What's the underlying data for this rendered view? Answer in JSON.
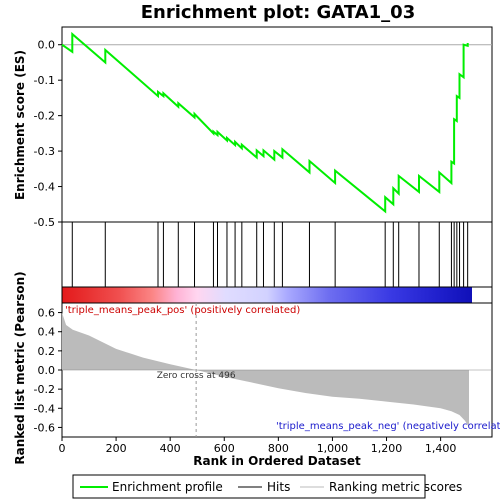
{
  "chart_data": {
    "type": "line",
    "title": "Enrichment plot: GATA1_03",
    "xlabel": "Rank in Ordered Dataset",
    "ylabel_top": "Enrichment score (ES)",
    "ylabel_bottom": "Ranked list metric (Pearson)",
    "x_range": [
      0,
      1590
    ],
    "es_ylim": [
      -0.5,
      0.05
    ],
    "metric_ylim": [
      -0.7,
      0.7
    ],
    "x_ticks": [
      0,
      200,
      400,
      600,
      800,
      1000,
      1200,
      1400
    ],
    "x_tick_labels": [
      "0",
      "200",
      "400",
      "600",
      "800",
      "1,000",
      "1,200",
      "1,400"
    ],
    "es_ticks": [
      0.0,
      -0.1,
      -0.2,
      -0.3,
      -0.4,
      -0.5
    ],
    "es_tick_labels": [
      "0.0",
      "-0.1",
      "-0.2",
      "-0.3",
      "-0.4",
      "-0.5"
    ],
    "metric_ticks": [
      0.6,
      0.4,
      0.2,
      0.0,
      -0.2,
      -0.4,
      -0.6
    ],
    "metric_tick_labels": [
      "0.6",
      "0.4",
      "0.2",
      "0.0",
      "-0.2",
      "-0.4",
      "-0.6"
    ],
    "hits": [
      38,
      160,
      355,
      375,
      430,
      490,
      560,
      575,
      610,
      640,
      665,
      720,
      745,
      785,
      815,
      915,
      1010,
      1195,
      1225,
      1245,
      1320,
      1395,
      1440,
      1450,
      1460,
      1470,
      1485,
      1500
    ],
    "es_profile": {
      "x": [
        0,
        38,
        38,
        160,
        160,
        355,
        355,
        375,
        375,
        430,
        430,
        490,
        490,
        560,
        560,
        575,
        575,
        610,
        610,
        640,
        640,
        665,
        665,
        720,
        720,
        745,
        745,
        785,
        785,
        815,
        815,
        915,
        915,
        1010,
        1010,
        1195,
        1195,
        1225,
        1225,
        1245,
        1245,
        1320,
        1320,
        1395,
        1395,
        1440,
        1440,
        1450,
        1450,
        1460,
        1460,
        1470,
        1470,
        1485,
        1485,
        1500,
        1500
      ],
      "y": [
        0.0,
        -0.02,
        0.03,
        -0.05,
        -0.015,
        -0.145,
        -0.133,
        -0.145,
        -0.137,
        -0.175,
        -0.165,
        -0.205,
        -0.195,
        -0.25,
        -0.245,
        -0.255,
        -0.246,
        -0.27,
        -0.263,
        -0.283,
        -0.274,
        -0.292,
        -0.282,
        -0.318,
        -0.298,
        -0.314,
        -0.298,
        -0.324,
        -0.3,
        -0.318,
        -0.295,
        -0.36,
        -0.328,
        -0.39,
        -0.355,
        -0.47,
        -0.43,
        -0.45,
        -0.405,
        -0.42,
        -0.37,
        -0.415,
        -0.37,
        -0.415,
        -0.36,
        -0.39,
        -0.33,
        -0.335,
        -0.21,
        -0.215,
        -0.145,
        -0.15,
        -0.083,
        -0.092,
        -0.0,
        -0.003,
        0.005
      ]
    },
    "metric_profile": {
      "x": [
        0,
        15,
        40,
        100,
        200,
        300,
        400,
        496,
        600,
        700,
        800,
        900,
        1000,
        1100,
        1200,
        1300,
        1350,
        1400,
        1440,
        1470,
        1490,
        1505
      ],
      "y": [
        0.6,
        0.47,
        0.42,
        0.36,
        0.22,
        0.13,
        0.06,
        0.0,
        -0.07,
        -0.13,
        -0.19,
        -0.24,
        -0.28,
        -0.3,
        -0.33,
        -0.36,
        -0.38,
        -0.4,
        -0.43,
        -0.47,
        -0.53,
        -0.6
      ]
    },
    "zero_cross_label": "Zero cross at 496",
    "pos_annotation": "'triple_means_peak_pos' (positively correlated)",
    "neg_annotation": "'triple_means_peak_neg' (negatively correlated)",
    "legend": {
      "profile": "Enrichment profile",
      "hits": "Hits",
      "metric": "Ranking metric scores"
    },
    "colors": {
      "profile": "#00ee00",
      "hits": "#000000",
      "metric_fill": "#bbbbbb",
      "frame": "#000000"
    },
    "heat_gradient": [
      "#e41a1c",
      "#f24b4b",
      "#fb8a8a",
      "#ffc8e6",
      "#e6e0ff",
      "#b8b8ff",
      "#7b7bff",
      "#3a3aee",
      "#1a1acc"
    ]
  }
}
